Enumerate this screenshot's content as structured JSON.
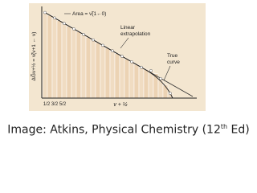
{
  "figure": {
    "y_label": "ΔG̃v+½ = ν̃(v+1 ← v)",
    "x_label": "v + ½",
    "x_ticks": [
      "1/2",
      "3/2",
      "5/2"
    ],
    "area_label": "Area = ν̃(1←0)",
    "linear_label": [
      "Linear",
      "extrapolation"
    ],
    "curve_label": [
      "True",
      "curve"
    ]
  },
  "caption": {
    "text": "Image: Atkins, Physical Chemistry (12",
    "sup": "th",
    "end": " Ed)"
  }
}
